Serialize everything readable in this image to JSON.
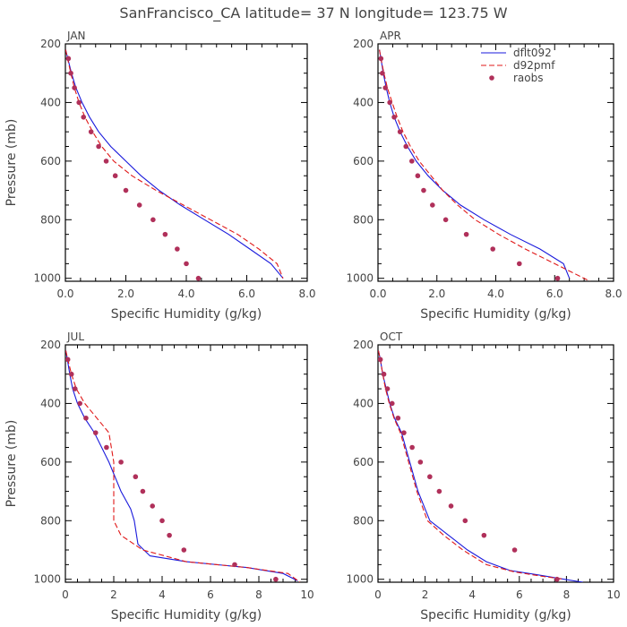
{
  "title": "SanFrancisco_CA  latitude= 37 N longitude= 123.75 W",
  "colors": {
    "dflt092": "#1a1adc",
    "d92pmf": "#e01818",
    "raobs": "#b0305a",
    "axis": "#000000",
    "text": "#444444"
  },
  "legend": {
    "entries": [
      {
        "label": "dflt092",
        "style": "solid-line",
        "color": "#1a1adc"
      },
      {
        "label": "d92pmf",
        "style": "dashed-line",
        "color": "#e01818"
      },
      {
        "label": "raobs",
        "style": "dot",
        "color": "#b0305a"
      }
    ]
  },
  "chart_data": [
    {
      "type": "line",
      "panel_label": "JAN",
      "xlabel": "Specific Humidity (g/kg)",
      "ylabel": "Pressure (mb)",
      "xlim": [
        0,
        8
      ],
      "ylim": [
        1010,
        200
      ],
      "y_inverted": true,
      "xticks": [
        "0.0",
        "2.0",
        "4.0",
        "6.0",
        "8.0"
      ],
      "yticks": [
        "200",
        "400",
        "600",
        "800",
        "1000"
      ],
      "series": [
        {
          "name": "dflt092",
          "style": "solid",
          "x": [
            0.01,
            0.08,
            0.2,
            0.35,
            0.55,
            0.8,
            1.1,
            1.5,
            2.0,
            2.5,
            3.1,
            3.8,
            4.6,
            5.4,
            6.1,
            6.8,
            7.2
          ],
          "y": [
            220,
            250,
            300,
            350,
            400,
            450,
            500,
            550,
            600,
            650,
            700,
            750,
            800,
            850,
            900,
            950,
            1000
          ]
        },
        {
          "name": "d92pmf",
          "style": "dashed",
          "x": [
            0.01,
            0.07,
            0.18,
            0.3,
            0.45,
            0.65,
            0.9,
            1.2,
            1.6,
            2.2,
            3.0,
            3.9,
            4.8,
            5.7,
            6.4,
            7.0,
            7.2
          ],
          "y": [
            220,
            250,
            300,
            350,
            400,
            450,
            500,
            550,
            600,
            650,
            700,
            750,
            800,
            850,
            900,
            950,
            1000
          ]
        },
        {
          "name": "raobs",
          "style": "dots",
          "x": [
            0.1,
            0.18,
            0.3,
            0.45,
            0.6,
            0.85,
            1.1,
            1.35,
            1.65,
            2.0,
            2.45,
            2.9,
            3.3,
            3.7,
            4.0,
            4.4
          ],
          "y": [
            250,
            300,
            350,
            400,
            450,
            500,
            550,
            600,
            650,
            700,
            750,
            800,
            850,
            900,
            950,
            1000
          ]
        }
      ]
    },
    {
      "type": "line",
      "panel_label": "APR",
      "xlabel": "Specific Humidity (g/kg)",
      "ylabel": "",
      "xlim": [
        0,
        8
      ],
      "ylim": [
        1010,
        200
      ],
      "y_inverted": true,
      "xticks": [
        "0.0",
        "2.0",
        "4.0",
        "6.0",
        "8.0"
      ],
      "yticks": [
        "200",
        "400",
        "600",
        "800",
        "1000"
      ],
      "series": [
        {
          "name": "dflt092",
          "style": "solid",
          "x": [
            0.05,
            0.1,
            0.18,
            0.28,
            0.4,
            0.55,
            0.75,
            1.0,
            1.3,
            1.7,
            2.2,
            2.8,
            3.6,
            4.5,
            5.5,
            6.3,
            6.5
          ],
          "y": [
            220,
            250,
            300,
            350,
            400,
            450,
            500,
            550,
            600,
            650,
            700,
            750,
            800,
            850,
            900,
            950,
            1000
          ]
        },
        {
          "name": "d92pmf",
          "style": "dashed",
          "x": [
            0.05,
            0.1,
            0.2,
            0.32,
            0.48,
            0.65,
            0.85,
            1.1,
            1.4,
            1.8,
            2.2,
            2.7,
            3.3,
            4.1,
            5.0,
            6.0,
            7.2
          ],
          "y": [
            220,
            250,
            300,
            350,
            400,
            450,
            500,
            550,
            600,
            650,
            700,
            750,
            800,
            850,
            900,
            950,
            1010
          ]
        },
        {
          "name": "raobs",
          "style": "dots",
          "x": [
            0.1,
            0.15,
            0.25,
            0.4,
            0.55,
            0.75,
            0.95,
            1.15,
            1.35,
            1.55,
            1.85,
            2.3,
            3.0,
            3.9,
            4.8,
            6.1
          ],
          "y": [
            250,
            300,
            350,
            400,
            450,
            500,
            550,
            600,
            650,
            700,
            750,
            800,
            850,
            900,
            950,
            1000
          ]
        }
      ]
    },
    {
      "type": "line",
      "panel_label": "JUL",
      "xlabel": "Specific Humidity (g/kg)",
      "ylabel": "Pressure (mb)",
      "xlim": [
        0,
        10
      ],
      "ylim": [
        1010,
        200
      ],
      "y_inverted": true,
      "xticks": [
        "0",
        "2",
        "4",
        "6",
        "8",
        "10"
      ],
      "yticks": [
        "200",
        "400",
        "600",
        "800",
        "1000"
      ],
      "series": [
        {
          "name": "dflt092",
          "style": "solid",
          "x": [
            0.02,
            0.08,
            0.18,
            0.3,
            0.5,
            0.8,
            1.2,
            1.8,
            2.3,
            2.7,
            2.85,
            3.0,
            3.5,
            5.0,
            7.5,
            9.0,
            9.6
          ],
          "y": [
            220,
            250,
            300,
            350,
            400,
            450,
            500,
            600,
            700,
            760,
            800,
            880,
            920,
            940,
            960,
            980,
            1005
          ]
        },
        {
          "name": "d92pmf",
          "style": "dashed",
          "x": [
            0.02,
            0.1,
            0.25,
            0.45,
            0.8,
            1.3,
            1.8,
            2.0,
            2.0,
            2.0,
            2.3,
            3.2,
            5.0,
            7.5,
            9.2,
            9.7
          ],
          "y": [
            220,
            250,
            300,
            350,
            400,
            450,
            500,
            600,
            720,
            800,
            850,
            900,
            940,
            960,
            980,
            1010
          ]
        },
        {
          "name": "raobs",
          "style": "dots",
          "x": [
            0.1,
            0.25,
            0.4,
            0.6,
            0.85,
            1.25,
            1.7,
            2.3,
            2.9,
            3.2,
            3.6,
            4.0,
            4.3,
            4.9,
            7.0,
            8.7
          ],
          "y": [
            250,
            300,
            350,
            400,
            450,
            500,
            550,
            600,
            650,
            700,
            750,
            800,
            850,
            900,
            950,
            1000
          ]
        }
      ]
    },
    {
      "type": "line",
      "panel_label": "OCT",
      "xlabel": "Specific Humidity (g/kg)",
      "ylabel": "",
      "xlim": [
        0,
        10
      ],
      "ylim": [
        1010,
        200
      ],
      "y_inverted": true,
      "xticks": [
        "0",
        "2",
        "4",
        "6",
        "8",
        "10"
      ],
      "yticks": [
        "200",
        "400",
        "600",
        "800",
        "1000"
      ],
      "series": [
        {
          "name": "dflt092",
          "style": "solid",
          "x": [
            0.02,
            0.1,
            0.2,
            0.35,
            0.5,
            0.7,
            1.0,
            1.35,
            1.7,
            2.2,
            3.0,
            3.8,
            4.6,
            5.6,
            6.8,
            7.9,
            8.7
          ],
          "y": [
            220,
            250,
            300,
            350,
            400,
            450,
            500,
            600,
            700,
            800,
            850,
            900,
            940,
            970,
            985,
            1000,
            1010
          ]
        },
        {
          "name": "d92pmf",
          "style": "dashed",
          "x": [
            0.02,
            0.1,
            0.2,
            0.32,
            0.48,
            0.68,
            0.95,
            1.3,
            1.65,
            2.1,
            2.8,
            3.6,
            4.6,
            5.8,
            7.0,
            7.9
          ],
          "y": [
            220,
            250,
            300,
            350,
            400,
            450,
            500,
            600,
            700,
            800,
            850,
            900,
            950,
            975,
            990,
            1000
          ]
        },
        {
          "name": "raobs",
          "style": "dots",
          "x": [
            0.1,
            0.25,
            0.4,
            0.6,
            0.85,
            1.1,
            1.45,
            1.8,
            2.2,
            2.6,
            3.1,
            3.7,
            4.5,
            5.8,
            7.6
          ],
          "y": [
            250,
            300,
            350,
            400,
            450,
            500,
            550,
            600,
            650,
            700,
            750,
            800,
            850,
            900,
            1000
          ]
        }
      ]
    }
  ]
}
